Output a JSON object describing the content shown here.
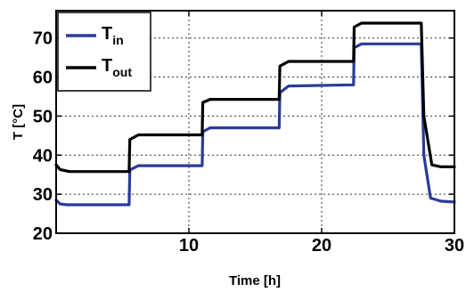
{
  "chart_data": {
    "type": "line",
    "xlabel": "Time [h]",
    "ylabel": "T [°C]",
    "xlim": [
      0,
      30
    ],
    "ylim": [
      20,
      77
    ],
    "xticks": [
      10,
      20,
      30
    ],
    "yticks": [
      20,
      30,
      40,
      50,
      60,
      70
    ],
    "grid": true,
    "legend": {
      "position": "top-left",
      "entries": [
        {
          "main": "T",
          "sub": "in",
          "color": "#2b3a9a"
        },
        {
          "main": "T",
          "sub": "out",
          "color": "#000000"
        }
      ]
    },
    "series": [
      {
        "key": "T_in",
        "color": "#2b3a9a",
        "x": [
          0,
          0.3,
          0.8,
          5.5,
          5.55,
          6.2,
          11.0,
          11.05,
          11.6,
          16.8,
          16.85,
          17.5,
          22.4,
          22.45,
          23.0,
          27.5,
          27.7,
          28.2,
          29.0,
          30
        ],
        "y": [
          28.5,
          27.5,
          27.3,
          27.3,
          36.2,
          37.3,
          37.3,
          46.0,
          47.0,
          47.0,
          56.0,
          57.7,
          58.0,
          67.5,
          68.5,
          68.5,
          40,
          29,
          28.2,
          28.0
        ]
      },
      {
        "key": "T_out",
        "color": "#000000",
        "x": [
          0,
          0.3,
          1.0,
          5.5,
          5.55,
          6.2,
          11.0,
          11.05,
          11.6,
          16.8,
          16.85,
          17.5,
          22.4,
          22.45,
          23.0,
          27.5,
          27.7,
          28.3,
          29.0,
          30
        ],
        "y": [
          37.5,
          36.3,
          35.8,
          35.8,
          44.0,
          45.2,
          45.2,
          53.5,
          54.3,
          54.3,
          62.8,
          64.0,
          64.0,
          72.8,
          73.8,
          73.8,
          50,
          37.5,
          37.0,
          37.0
        ]
      }
    ]
  }
}
